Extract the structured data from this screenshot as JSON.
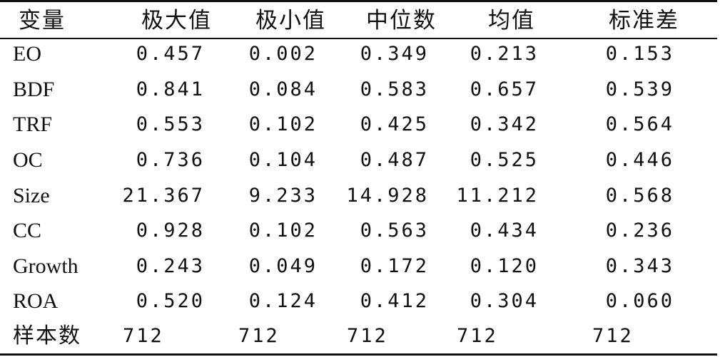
{
  "table": {
    "headers": [
      "变量",
      "极大值",
      "极小值",
      "中位数",
      "均值",
      "标准差"
    ],
    "rows": [
      {
        "label": "EO",
        "values": [
          "0.457",
          "0.002",
          "0.349",
          "0.213",
          "0.153"
        ]
      },
      {
        "label": "BDF",
        "values": [
          "0.841",
          "0.084",
          "0.583",
          "0.657",
          "0.539"
        ]
      },
      {
        "label": "TRF",
        "values": [
          "0.553",
          "0.102",
          "0.425",
          "0.342",
          "0.564"
        ]
      },
      {
        "label": "OC",
        "values": [
          "0.736",
          "0.104",
          "0.487",
          "0.525",
          "0.446"
        ]
      },
      {
        "label": "Size",
        "values": [
          "21.367",
          "9.233",
          "14.928",
          "11.212",
          "0.568"
        ]
      },
      {
        "label": "CC",
        "values": [
          "0.928",
          "0.102",
          "0.563",
          "0.434",
          "0.236"
        ]
      },
      {
        "label": "Growth",
        "values": [
          "0.243",
          "0.049",
          "0.172",
          "0.120",
          "0.343"
        ]
      },
      {
        "label": "ROA",
        "values": [
          "0.520",
          "0.124",
          "0.412",
          "0.304",
          "0.060"
        ]
      }
    ],
    "sample_row": {
      "label": "样本数",
      "values": [
        "712",
        "712",
        "712",
        "712",
        "712"
      ]
    }
  }
}
